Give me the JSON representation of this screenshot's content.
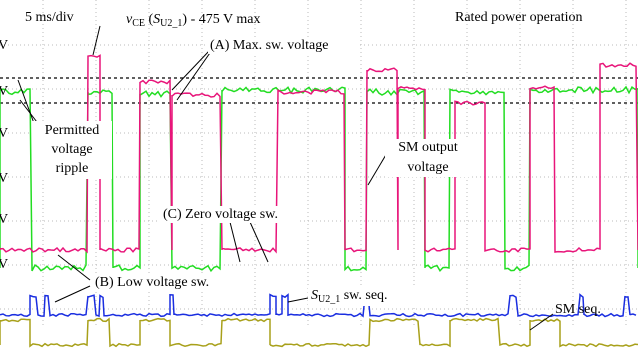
{
  "header": {
    "timebase": "5 ms/div",
    "mode": "Rated power operation"
  },
  "axis_labels": [
    "V",
    "V",
    "V",
    "V",
    "V",
    "V"
  ],
  "annotations": {
    "vce_max": {
      "symbol": "v",
      "symbol_sub": "CE",
      "open": " (",
      "switch": "S",
      "switch_sub": "U2_1",
      "close": ") - 475 V max"
    },
    "max_voltage": "(A) Max. sw. voltage",
    "ripple": [
      "Permitted",
      "voltage",
      "ripple"
    ],
    "sm_output": [
      "SM output",
      "voltage"
    ],
    "zero_voltage": "(C) Zero voltage sw.",
    "low_voltage": "(B) Low voltage sw.",
    "switch_seq": {
      "switch": "S",
      "switch_sub": "U2_1",
      "rest": " sw. seq."
    },
    "sm_seq": "SM seq."
  }
}
